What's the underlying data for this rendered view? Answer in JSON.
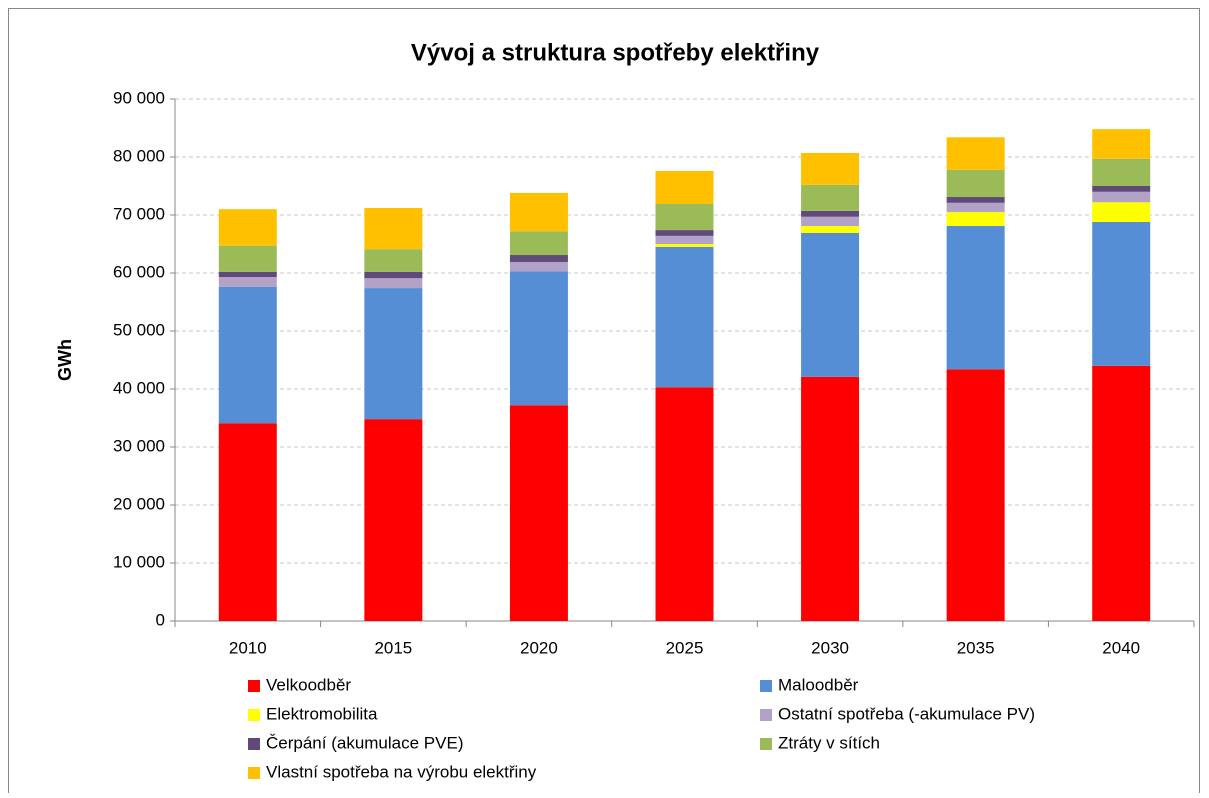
{
  "chart_data": {
    "type": "stacked_bar",
    "title": "Vývoj a struktura spotřeby elektřiny",
    "y_label": "GWh",
    "categories": [
      "2010",
      "2015",
      "2020",
      "2025",
      "2030",
      "2035",
      "2040"
    ],
    "series": [
      {
        "name": "Velkoodběr",
        "color": "#ff0000",
        "values": [
          34100,
          34800,
          37200,
          40300,
          42100,
          43400,
          44000
        ]
      },
      {
        "name": "Maloodběr",
        "color": "#558ed5",
        "values": [
          23500,
          22600,
          23100,
          24200,
          24800,
          24700,
          24800
        ]
      },
      {
        "name": "Elektromobilita",
        "color": "#ffff00",
        "values": [
          0,
          0,
          0,
          500,
          1200,
          2400,
          3400
        ]
      },
      {
        "name": "Ostatní spotřeba (-akumulace PV)",
        "color": "#b3a2c7",
        "values": [
          1700,
          1700,
          1600,
          1400,
          1600,
          1600,
          1800
        ]
      },
      {
        "name": "Čerpání (akumulace PVE)",
        "color": "#604a7b",
        "values": [
          900,
          1100,
          1200,
          1000,
          1000,
          1000,
          1000
        ]
      },
      {
        "name": "Ztráty v sítích",
        "color": "#9bbb59",
        "values": [
          4500,
          3900,
          4100,
          4500,
          4500,
          4700,
          4700
        ]
      },
      {
        "name": "Vlastní spotřeba na výrobu elektřiny",
        "color": "#ffc000",
        "values": [
          6300,
          7100,
          6600,
          5700,
          5500,
          5600,
          5100
        ]
      }
    ],
    "ylim": [
      0,
      90000
    ],
    "yticks": [
      0,
      {
        "value": 10000,
        "label": "10 000"
      },
      {
        "value": 20000,
        "label": "20 000"
      },
      {
        "value": 30000,
        "label": "30 000"
      },
      {
        "value": 40000,
        "label": "40 000"
      },
      {
        "value": 50000,
        "label": "50 000"
      },
      {
        "value": 60000,
        "label": "60 000"
      },
      {
        "value": 70000,
        "label": "70 000"
      },
      {
        "value": 80000,
        "label": "80 000"
      },
      {
        "value": 90000,
        "label": "90 000"
      }
    ],
    "grid": true
  }
}
